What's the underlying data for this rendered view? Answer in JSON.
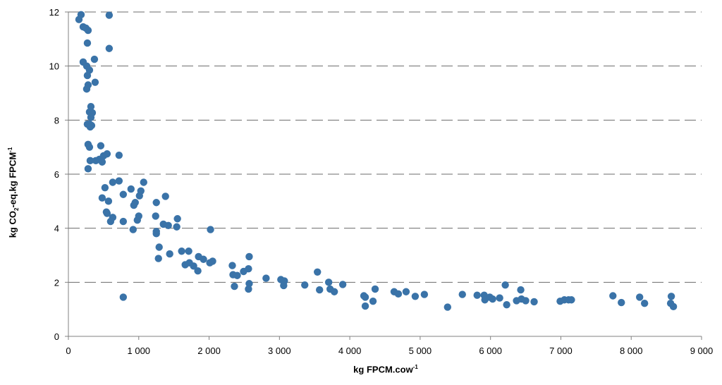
{
  "chart_data": {
    "type": "scatter",
    "xlabel": {
      "pre": "kg FPCM.cow",
      "sup": "-1"
    },
    "ylabel": {
      "pre": "kg CO",
      "sub": "2",
      "mid": "-eq.kg FPCM",
      "sup": "-1"
    },
    "xlim": [
      0,
      9000
    ],
    "ylim": [
      0,
      12
    ],
    "xticks": [
      0,
      1000,
      2000,
      3000,
      4000,
      5000,
      6000,
      7000,
      8000,
      9000
    ],
    "xtick_labels": [
      "0",
      "1 000",
      "2 000",
      "3 000",
      "4 000",
      "5 000",
      "6 000",
      "7 000",
      "8 000",
      "9 000"
    ],
    "yticks": [
      0,
      2,
      4,
      6,
      8,
      10,
      12
    ],
    "ytick_labels": [
      "0",
      "2",
      "4",
      "6",
      "8",
      "10",
      "12"
    ],
    "grid": "horizontal dashed",
    "marker_color": "#3a73a8",
    "points": [
      [
        150,
        11.72
      ],
      [
        180,
        11.9
      ],
      [
        210,
        11.45
      ],
      [
        250,
        11.4
      ],
      [
        280,
        11.32
      ],
      [
        580,
        11.88
      ],
      [
        270,
        10.85
      ],
      [
        580,
        10.65
      ],
      [
        210,
        10.15
      ],
      [
        370,
        10.25
      ],
      [
        260,
        10.0
      ],
      [
        300,
        9.85
      ],
      [
        270,
        9.65
      ],
      [
        380,
        9.4
      ],
      [
        280,
        9.3
      ],
      [
        260,
        9.15
      ],
      [
        320,
        8.5
      ],
      [
        340,
        8.27
      ],
      [
        300,
        8.3
      ],
      [
        320,
        8.1
      ],
      [
        270,
        7.85
      ],
      [
        300,
        7.85
      ],
      [
        330,
        7.8
      ],
      [
        310,
        7.75
      ],
      [
        280,
        7.1
      ],
      [
        300,
        7.0
      ],
      [
        460,
        7.05
      ],
      [
        550,
        6.75
      ],
      [
        720,
        6.7
      ],
      [
        500,
        6.68
      ],
      [
        390,
        6.5
      ],
      [
        310,
        6.5
      ],
      [
        440,
        6.55
      ],
      [
        480,
        6.45
      ],
      [
        280,
        6.2
      ],
      [
        720,
        5.75
      ],
      [
        630,
        5.7
      ],
      [
        1070,
        5.7
      ],
      [
        520,
        5.5
      ],
      [
        890,
        5.45
      ],
      [
        1030,
        5.38
      ],
      [
        780,
        5.25
      ],
      [
        1010,
        5.2
      ],
      [
        1380,
        5.18
      ],
      [
        480,
        5.12
      ],
      [
        570,
        5.0
      ],
      [
        950,
        4.95
      ],
      [
        930,
        4.85
      ],
      [
        1250,
        4.95
      ],
      [
        540,
        4.6
      ],
      [
        550,
        4.55
      ],
      [
        1000,
        4.45
      ],
      [
        1240,
        4.45
      ],
      [
        1550,
        4.35
      ],
      [
        630,
        4.4
      ],
      [
        600,
        4.25
      ],
      [
        780,
        4.25
      ],
      [
        980,
        4.3
      ],
      [
        1350,
        4.15
      ],
      [
        1420,
        4.1
      ],
      [
        1540,
        4.05
      ],
      [
        920,
        3.95
      ],
      [
        2020,
        3.95
      ],
      [
        1250,
        3.88
      ],
      [
        1250,
        3.8
      ],
      [
        1440,
        3.05
      ],
      [
        1290,
        3.3
      ],
      [
        1610,
        3.15
      ],
      [
        1710,
        3.15
      ],
      [
        1280,
        2.88
      ],
      [
        1850,
        2.95
      ],
      [
        1920,
        2.85
      ],
      [
        1660,
        2.65
      ],
      [
        1720,
        2.72
      ],
      [
        1780,
        2.6
      ],
      [
        2010,
        2.72
      ],
      [
        2050,
        2.78
      ],
      [
        2330,
        2.62
      ],
      [
        1840,
        2.42
      ],
      [
        2570,
        2.95
      ],
      [
        2560,
        2.5
      ],
      [
        2490,
        2.4
      ],
      [
        2340,
        2.28
      ],
      [
        2400,
        2.25
      ],
      [
        3540,
        2.38
      ],
      [
        2810,
        2.15
      ],
      [
        3020,
        2.1
      ],
      [
        3070,
        2.05
      ],
      [
        3060,
        1.88
      ],
      [
        3360,
        1.9
      ],
      [
        2360,
        1.85
      ],
      [
        2570,
        1.95
      ],
      [
        2560,
        1.75
      ],
      [
        3700,
        2.0
      ],
      [
        3900,
        1.92
      ],
      [
        3570,
        1.72
      ],
      [
        3720,
        1.75
      ],
      [
        3780,
        1.65
      ],
      [
        4360,
        1.75
      ],
      [
        4200,
        1.5
      ],
      [
        4630,
        1.65
      ],
      [
        4690,
        1.57
      ],
      [
        4800,
        1.65
      ],
      [
        4930,
        1.48
      ],
      [
        5060,
        1.55
      ],
      [
        5600,
        1.55
      ],
      [
        5810,
        1.52
      ],
      [
        5910,
        1.52
      ],
      [
        5990,
        1.45
      ],
      [
        6210,
        1.9
      ],
      [
        6430,
        1.72
      ],
      [
        5920,
        1.35
      ],
      [
        6030,
        1.38
      ],
      [
        6130,
        1.42
      ],
      [
        6370,
        1.32
      ],
      [
        6440,
        1.38
      ],
      [
        6500,
        1.32
      ],
      [
        6620,
        1.28
      ],
      [
        6990,
        1.3
      ],
      [
        7050,
        1.35
      ],
      [
        7110,
        1.35
      ],
      [
        7150,
        1.35
      ],
      [
        7740,
        1.5
      ],
      [
        7860,
        1.25
      ],
      [
        8120,
        1.45
      ],
      [
        8190,
        1.22
      ],
      [
        8570,
        1.48
      ],
      [
        8560,
        1.22
      ],
      [
        8600,
        1.1
      ],
      [
        4220,
        1.45
      ],
      [
        4330,
        1.3
      ],
      [
        4220,
        1.12
      ],
      [
        5390,
        1.08
      ],
      [
        6230,
        1.17
      ],
      [
        780,
        1.45
      ]
    ]
  }
}
